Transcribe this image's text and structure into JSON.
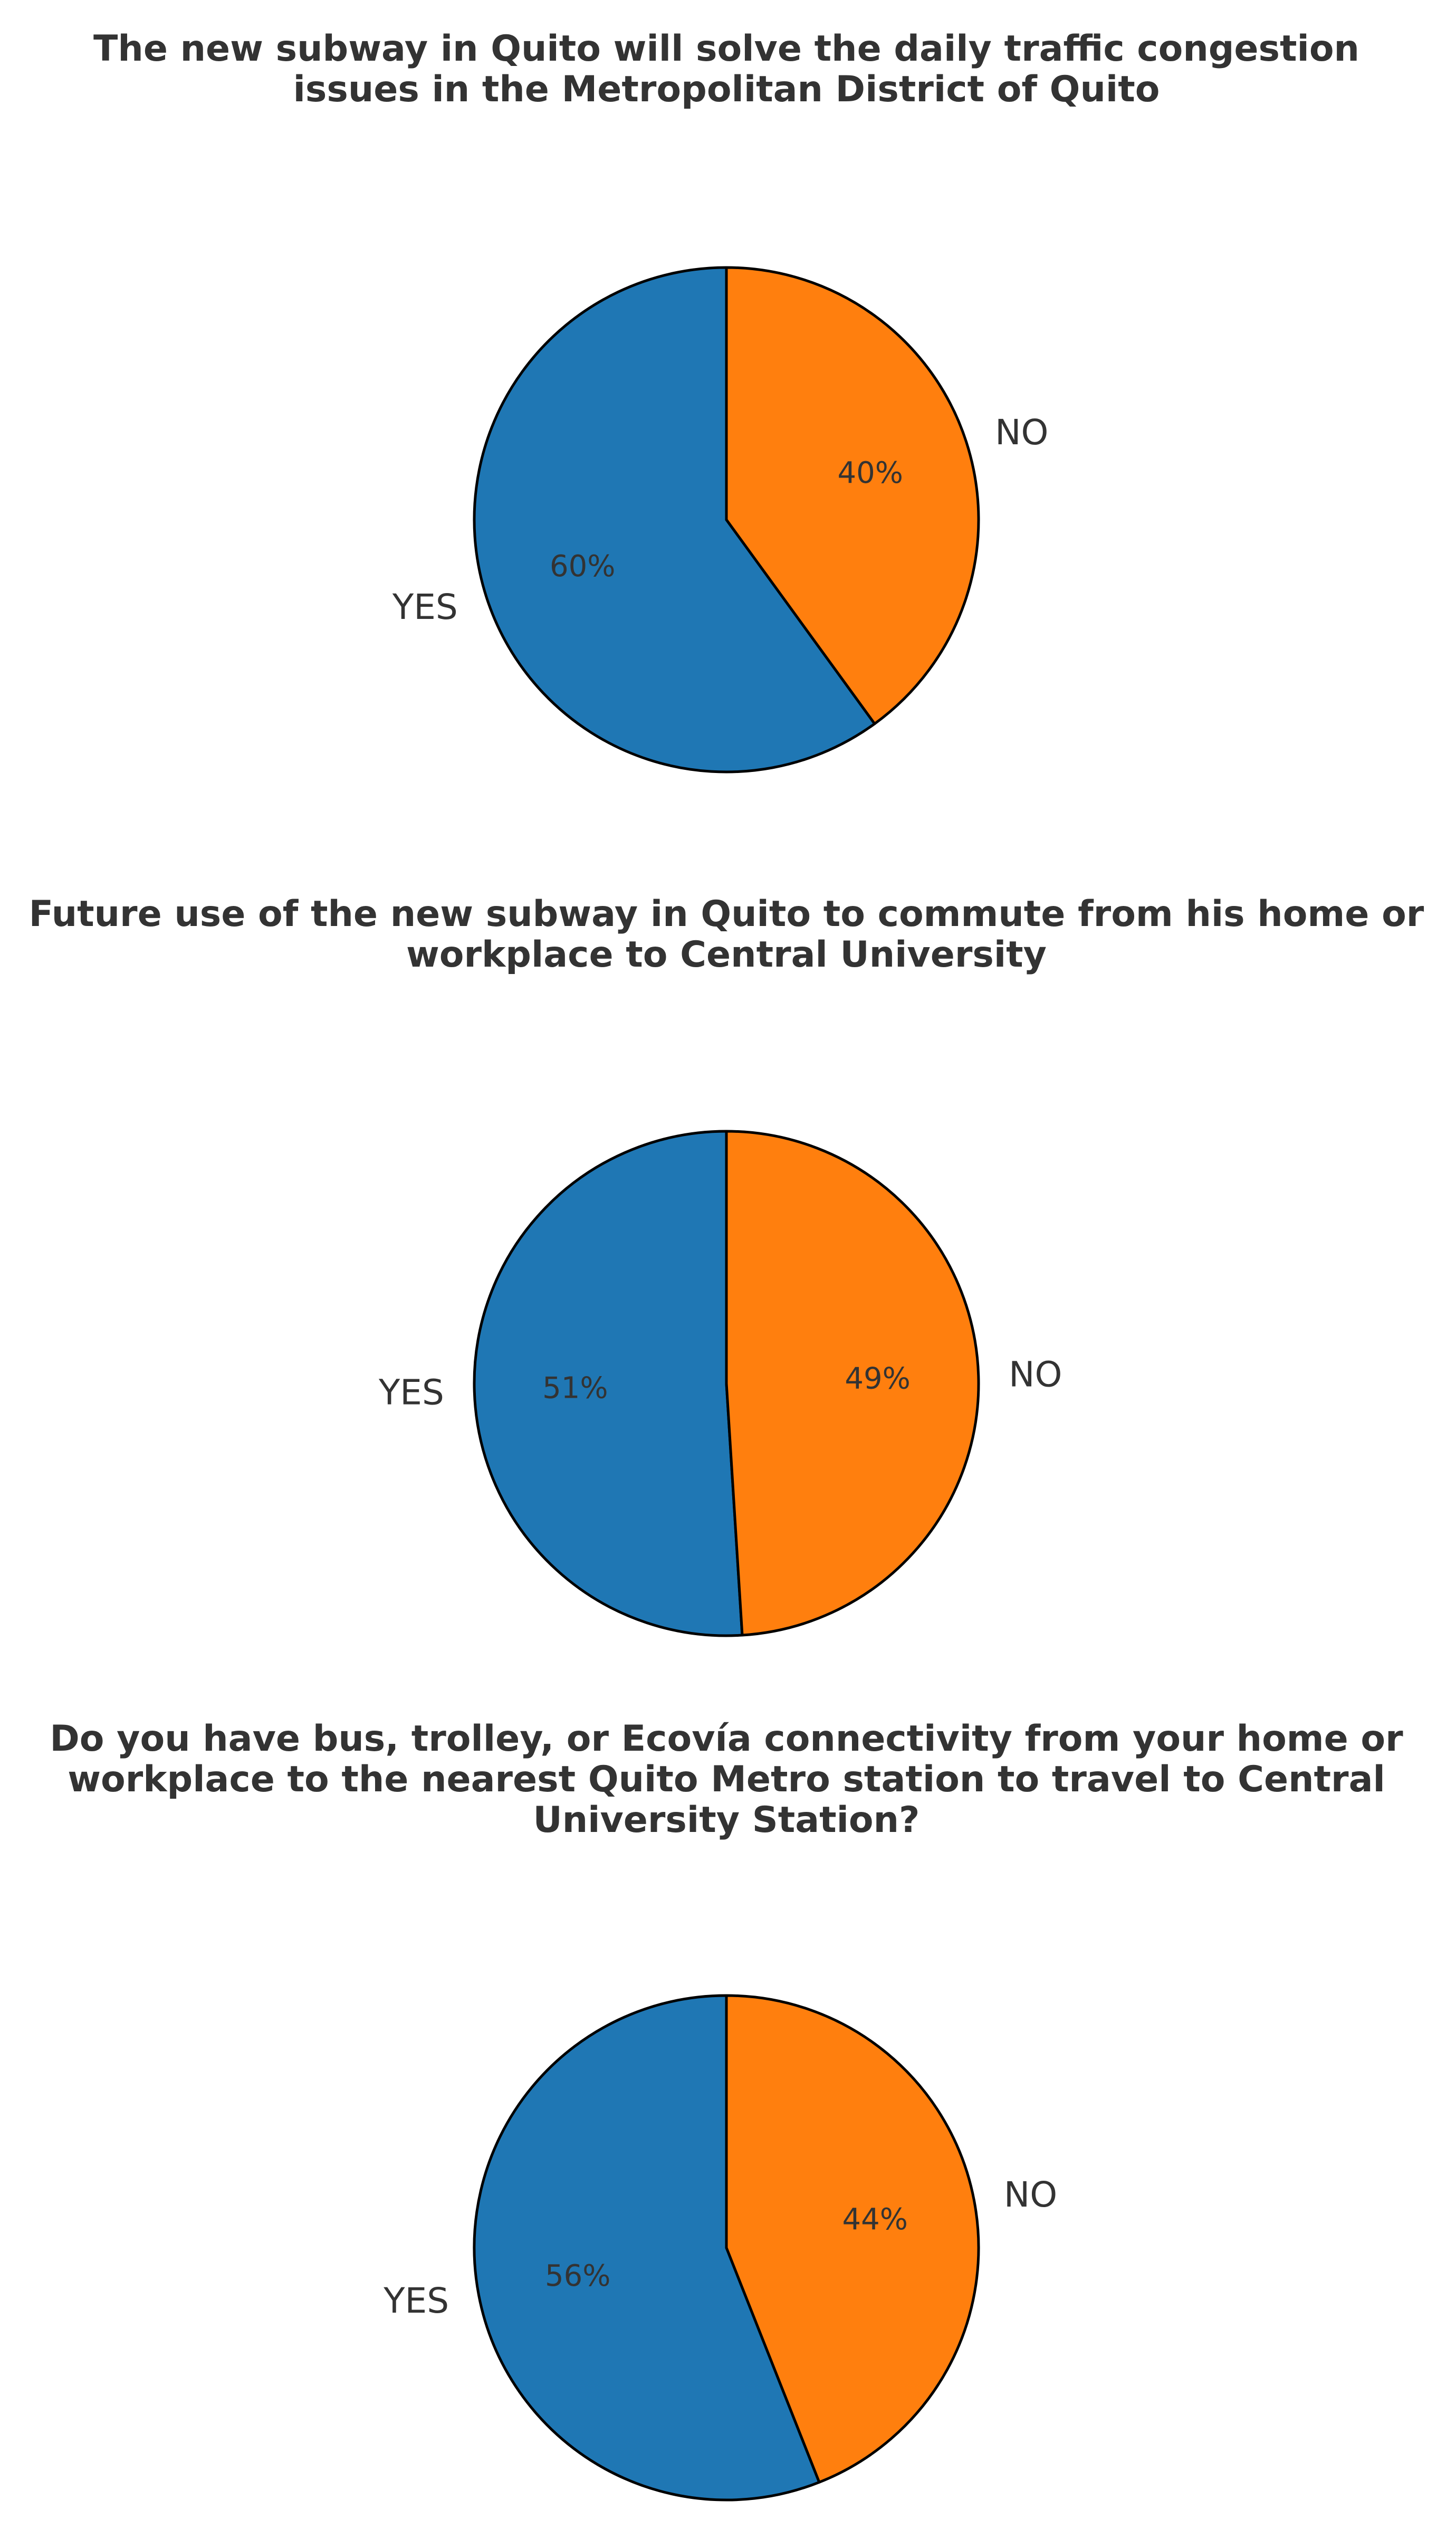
{
  "chart_data": [
    {
      "type": "pie",
      "title": "The new subway in Quito will solve the daily traffic congestion\nissues in the Metropolitan District of Quito",
      "categories": [
        "YES",
        "NO"
      ],
      "values": [
        60,
        40
      ],
      "value_labels": [
        "60%",
        "40%"
      ],
      "colors": [
        "#1f77b4",
        "#ff7f0e"
      ]
    },
    {
      "type": "pie",
      "title": "Future use of the new subway in Quito to commute from his home or\nworkplace to Central University",
      "categories": [
        "YES",
        "NO"
      ],
      "values": [
        51,
        49
      ],
      "value_labels": [
        "51%",
        "49%"
      ],
      "colors": [
        "#1f77b4",
        "#ff7f0e"
      ]
    },
    {
      "type": "pie",
      "title": "Do you have bus, trolley, or Ecovía connectivity from your home or\nworkplace to the nearest Quito Metro station to travel to Central\nUniversity Station?",
      "categories": [
        "YES",
        "NO"
      ],
      "values": [
        56,
        44
      ],
      "value_labels": [
        "56%",
        "44%"
      ],
      "colors": [
        "#1f77b4",
        "#ff7f0e"
      ]
    }
  ]
}
